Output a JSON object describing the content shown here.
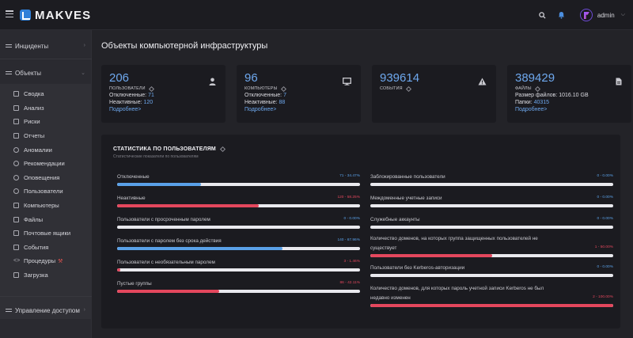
{
  "header": {
    "logo_text": "MAKVES",
    "user_name": "admin"
  },
  "colors": {
    "accent": "#6ea8ee",
    "blue_bar": "#5aa1e8",
    "red_bar": "#e4475d"
  },
  "sidebar": {
    "groups": [
      {
        "label": "Инциденты"
      },
      {
        "label": "Объекты"
      },
      {
        "label": "Управление доступом"
      }
    ],
    "items": [
      {
        "label": "Сводка",
        "icon": "grid-icon"
      },
      {
        "label": "Анализ",
        "icon": "chart-icon"
      },
      {
        "label": "Риски",
        "icon": "risk-icon"
      },
      {
        "label": "Отчеты",
        "icon": "report-icon"
      },
      {
        "label": "Аномалии",
        "icon": "anomaly-icon"
      },
      {
        "label": "Рекомендации",
        "icon": "bulb-icon"
      },
      {
        "label": "Оповещения",
        "icon": "bell-icon"
      },
      {
        "label": "Пользователи",
        "icon": "users-icon"
      },
      {
        "label": "Компьютеры",
        "icon": "monitor-icon"
      },
      {
        "label": "Файлы",
        "icon": "file-icon"
      },
      {
        "label": "Почтовые ящики",
        "icon": "mailbox-icon"
      },
      {
        "label": "События",
        "icon": "event-icon"
      },
      {
        "label": "Процедуры",
        "icon": "code-icon"
      },
      {
        "label": "Загрузка",
        "icon": "upload-icon"
      }
    ]
  },
  "page": {
    "title": "Объекты компьютерной инфраструктуры"
  },
  "cards": [
    {
      "value": "206",
      "caption": "ПОЛЬЗОВАТЕЛИ",
      "rows": [
        {
          "label": "Отключенные:",
          "value": "71"
        },
        {
          "label": "Неактивные:",
          "value": "120"
        }
      ],
      "more": "Подробнее>"
    },
    {
      "value": "96",
      "caption": "КОМПЬЮТЕРЫ",
      "rows": [
        {
          "label": "Отключенные:",
          "value": "7"
        },
        {
          "label": "Неактивные:",
          "value": "88"
        }
      ],
      "more": "Подробнее>"
    },
    {
      "value": "939614",
      "caption": "СОБЫТИЯ"
    },
    {
      "value": "389429",
      "caption": "ФАЙЛЫ",
      "rows": [
        {
          "label": "Размер файлов:",
          "value": "1016.10 GB"
        },
        {
          "label": "Папки:",
          "value": "40315"
        }
      ],
      "more": "Подробнее>"
    }
  ],
  "stats": {
    "title": "СТАТИСТИКА ПО ПОЛЬЗОВАТЕЛЯМ",
    "subtitle": "Статистические показатели по пользователям",
    "left": [
      {
        "label": "Отключенные",
        "value": "71 - 34.47%",
        "percent": 34.47,
        "color": "blue"
      },
      {
        "label": "Неактивные",
        "value": "120 - 58.25%",
        "percent": 58.25,
        "color": "red"
      },
      {
        "label": "Пользователи с просроченным паролем",
        "value": "0 - 0.00%",
        "percent": 0,
        "color": "blue"
      },
      {
        "label": "Пользователи с паролем без срока действия",
        "value": "140 - 67.96%",
        "percent": 67.96,
        "color": "blue"
      },
      {
        "label": "Пользователи с необязательным паролем",
        "value": "3 - 1.46%",
        "percent": 1.46,
        "color": "red"
      },
      {
        "label": "Пустые группы",
        "value": "86 - 42.11%",
        "percent": 42.11,
        "color": "red"
      }
    ],
    "right": [
      {
        "label": "Заблокированные пользователи",
        "value": "0 - 0.00%",
        "percent": 0,
        "color": "blue"
      },
      {
        "label": "Междоменные учетные записи",
        "value": "0 - 0.00%",
        "percent": 0,
        "color": "blue"
      },
      {
        "label": "Служебные аккаунты",
        "value": "0 - 0.00%",
        "percent": 0,
        "color": "blue"
      },
      {
        "label": "Количество доменов, на которых группа защищенных пользователей не",
        "label2": "существует",
        "value": "1 - 50.00%",
        "percent": 50,
        "color": "red"
      },
      {
        "label": "Пользователи без Kerberos-авторизации",
        "value": "0 - 0.00%",
        "percent": 0,
        "color": "blue"
      },
      {
        "label": "Количество доменов, для которых пароль учетной записи Kerberos не был",
        "label2": "недавно изменен",
        "value": "2 - 100.00%",
        "percent": 100,
        "color": "red"
      }
    ]
  }
}
